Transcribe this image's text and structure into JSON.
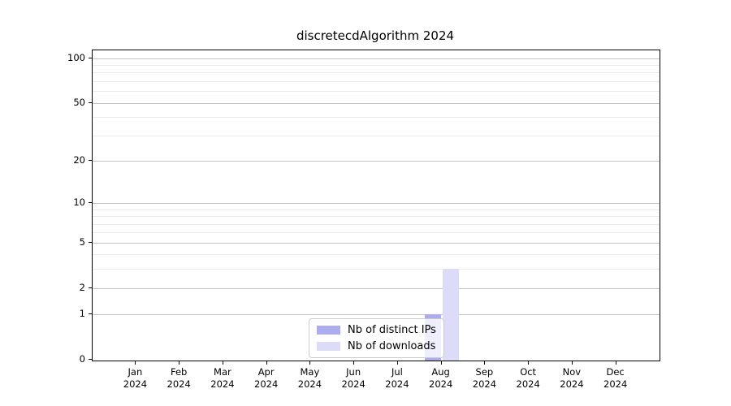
{
  "title": "discretecdAlgorithm 2024",
  "chart_data": {
    "type": "bar",
    "categories": [
      "Jan 2024",
      "Feb 2024",
      "Mar 2024",
      "Apr 2024",
      "May 2024",
      "Jun 2024",
      "Jul 2024",
      "Aug 2024",
      "Sep 2024",
      "Oct 2024",
      "Nov 2024",
      "Dec 2024"
    ],
    "series": [
      {
        "name": "Nb of distinct IPs",
        "color": "#acacee",
        "values": [
          0,
          0,
          0,
          0,
          0,
          0,
          0,
          1,
          0,
          0,
          0,
          0
        ]
      },
      {
        "name": "Nb of downloads",
        "color": "#dcdcf8",
        "values": [
          0,
          0,
          0,
          0,
          0,
          0,
          0,
          3,
          0,
          0,
          0,
          0
        ]
      }
    ],
    "xlabel": "",
    "ylabel": "",
    "yscale": "log1p",
    "ylim": [
      0,
      113
    ],
    "yticks": [
      0,
      1,
      2,
      5,
      10,
      20,
      50,
      100
    ],
    "yticks_minor": [
      3,
      4,
      6,
      7,
      8,
      9,
      30,
      40,
      60,
      70,
      80,
      90
    ],
    "grid": "horizontal",
    "legend_position": "inside-bottom-center"
  },
  "legend": {
    "items": [
      {
        "label": "Nb of distinct IPs",
        "color": "#acacee"
      },
      {
        "label": "Nb of downloads",
        "color": "#dcdcf8"
      }
    ]
  },
  "colors": {
    "background": "#ffffff",
    "axis": "#000000",
    "grid_major": "#c4c4c4",
    "grid_minor": "#ebebeb",
    "text": "#000000"
  }
}
